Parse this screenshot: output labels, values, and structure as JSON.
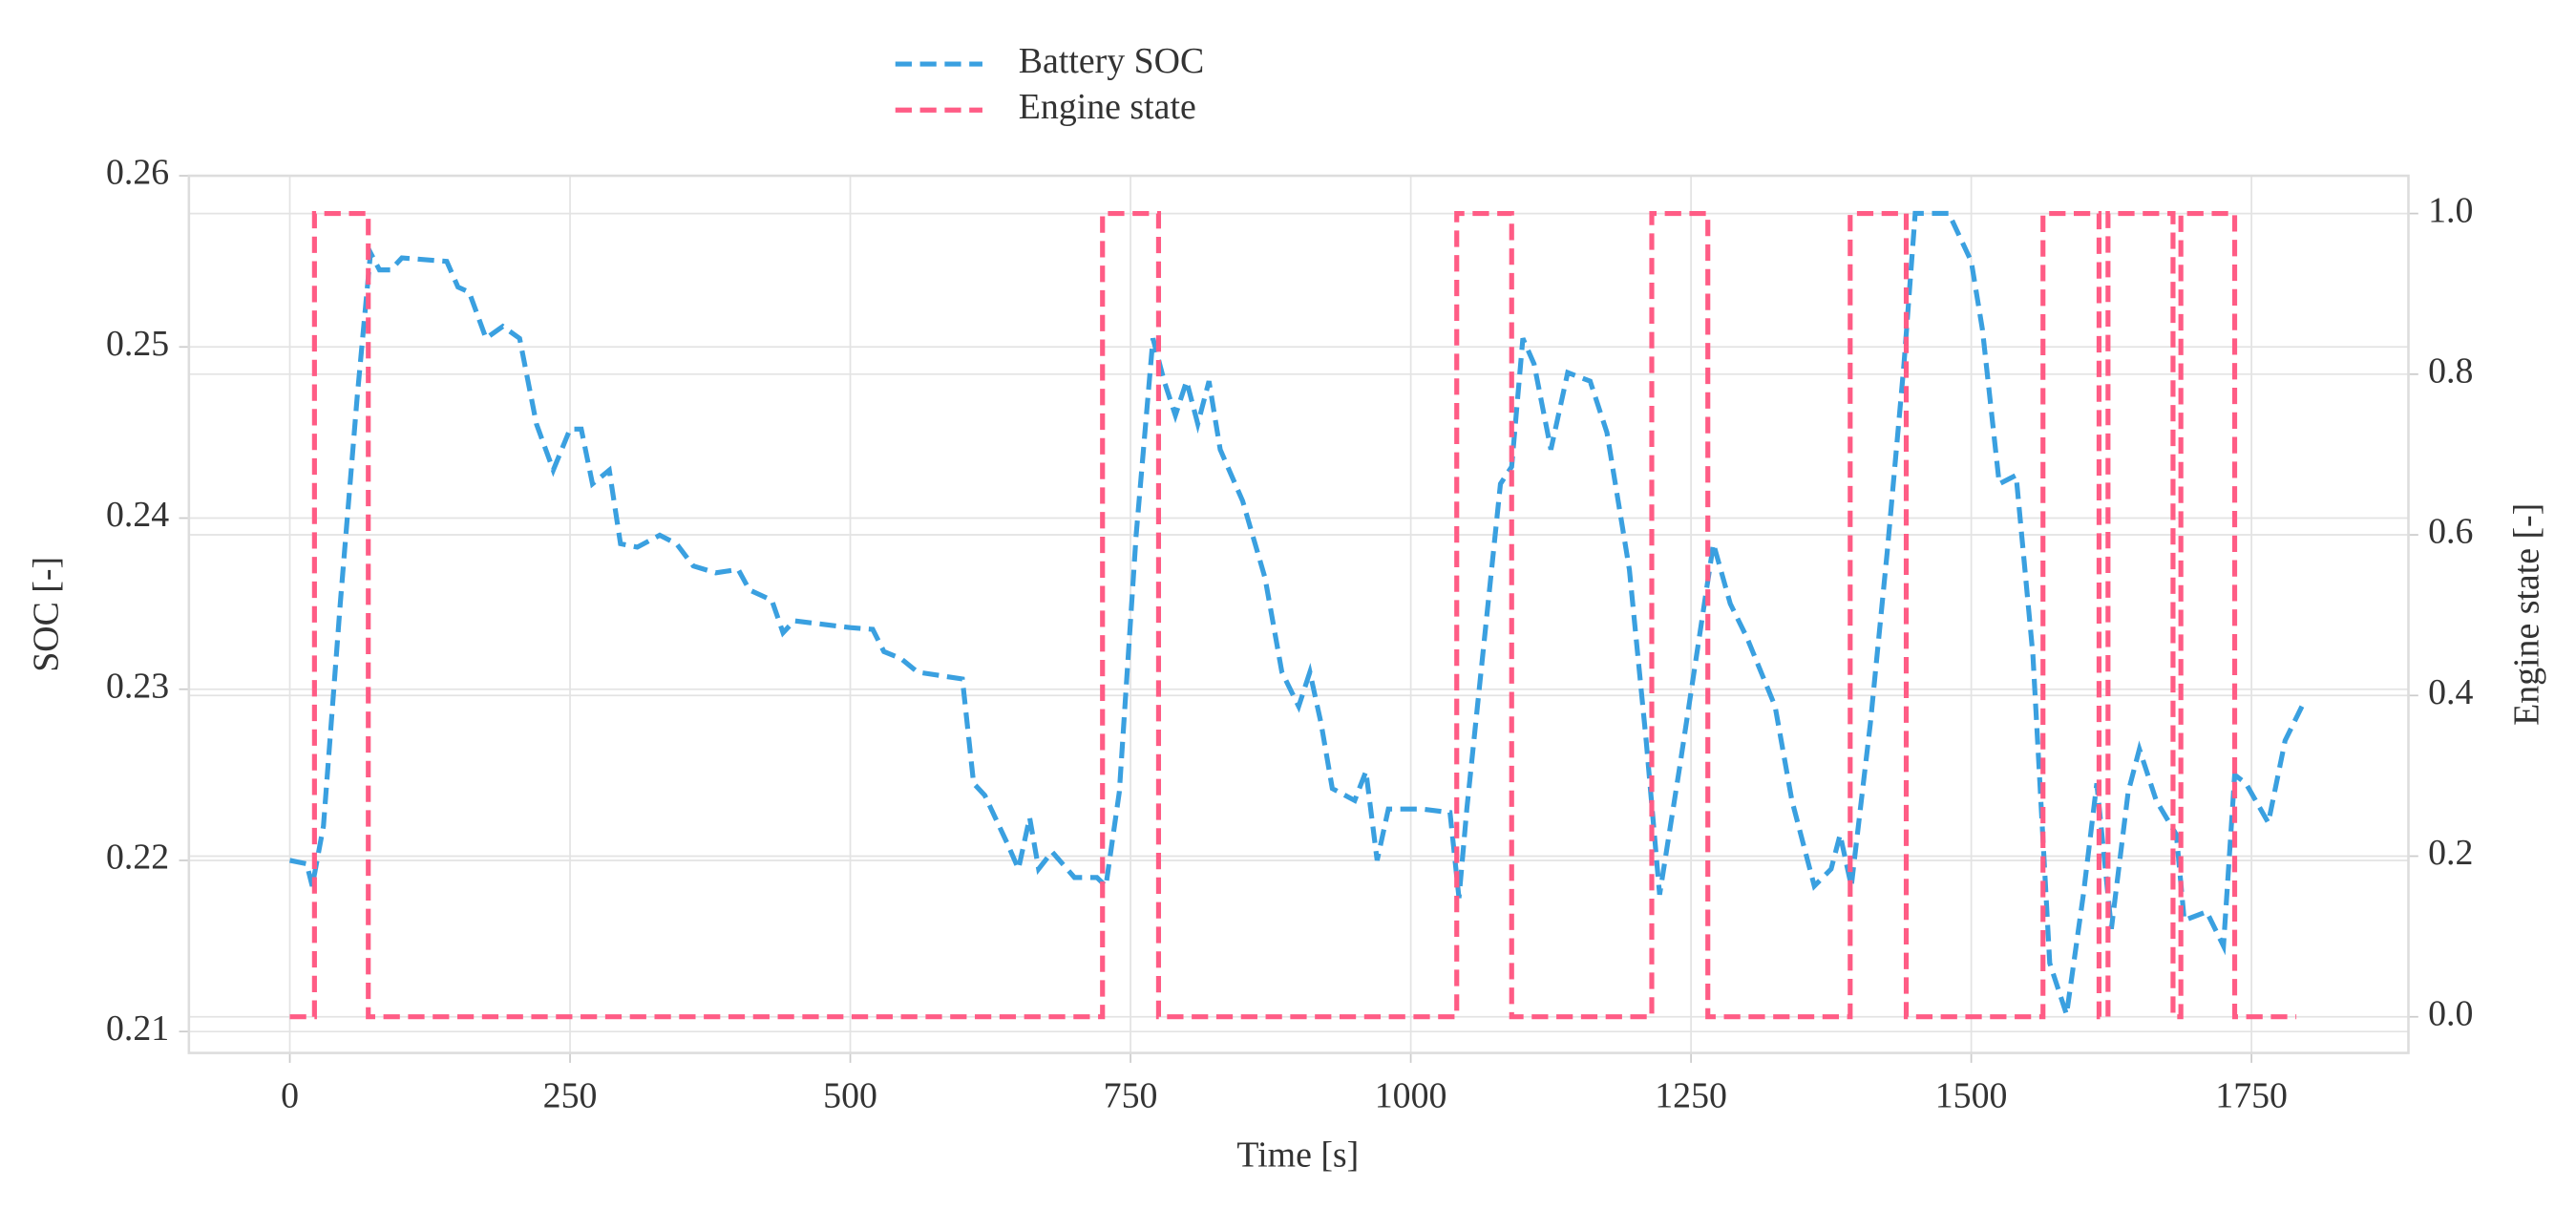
{
  "chart_data": {
    "type": "line",
    "xlabel": "Time [s]",
    "ylabel": "SOC [-]",
    "y2label": "Engine state [-]",
    "grid": true,
    "legend": "top",
    "xlim": [
      -90,
      1890
    ],
    "xticks": [
      0,
      250,
      500,
      750,
      1000,
      1250,
      1500,
      1750
    ],
    "ylim": [
      0.20875,
      0.26
    ],
    "yticks": [
      0.21,
      0.22,
      0.23,
      0.24,
      0.25,
      0.26
    ],
    "y2lim": [
      -0.045,
      1.047
    ],
    "y2ticks": [
      {
        "value": 0,
        "label": "0.0"
      },
      0.2,
      0.4,
      0.6,
      0.8,
      {
        "value": 1,
        "label": "1.0"
      }
    ],
    "series": [
      {
        "name": "Battery SOC",
        "color": "#3aa0e0",
        "axis": "y",
        "x": [
          0,
          15,
          20,
          30,
          45,
          60,
          72,
          80,
          90,
          100,
          140,
          150,
          160,
          175,
          190,
          205,
          220,
          235,
          250,
          260,
          270,
          285,
          295,
          310,
          330,
          345,
          360,
          380,
          400,
          410,
          430,
          440,
          450,
          500,
          520,
          530,
          545,
          560,
          600,
          610,
          620,
          640,
          650,
          660,
          668,
          680,
          700,
          720,
          728,
          740,
          755,
          770,
          780,
          790,
          800,
          810,
          820,
          830,
          850,
          870,
          885,
          900,
          910,
          920,
          930,
          950,
          960,
          970,
          980,
          1010,
          1035,
          1043,
          1050,
          1065,
          1080,
          1090,
          1100,
          1110,
          1125,
          1140,
          1160,
          1175,
          1195,
          1210,
          1222,
          1240,
          1255,
          1270,
          1285,
          1300,
          1325,
          1340,
          1360,
          1375,
          1383,
          1393,
          1410,
          1425,
          1440,
          1450,
          1480,
          1500,
          1510,
          1525,
          1540,
          1555,
          1570,
          1585,
          1600,
          1612,
          1625,
          1640,
          1650,
          1665,
          1683,
          1690,
          1710,
          1725,
          1735,
          1745,
          1765,
          1780,
          1795
        ],
        "values": [
          0.22,
          0.2198,
          0.2185,
          0.222,
          0.235,
          0.247,
          0.2555,
          0.2545,
          0.2545,
          0.2552,
          0.255,
          0.2535,
          0.2532,
          0.2505,
          0.2512,
          0.2505,
          0.2455,
          0.2428,
          0.2452,
          0.2452,
          0.242,
          0.2428,
          0.2385,
          0.2383,
          0.239,
          0.2385,
          0.2372,
          0.2368,
          0.237,
          0.2358,
          0.2352,
          0.2333,
          0.234,
          0.2336,
          0.2335,
          0.2322,
          0.2318,
          0.231,
          0.2306,
          0.2245,
          0.2238,
          0.221,
          0.2195,
          0.2225,
          0.2195,
          0.2205,
          0.219,
          0.219,
          0.2185,
          0.224,
          0.239,
          0.2505,
          0.248,
          0.246,
          0.248,
          0.2455,
          0.248,
          0.244,
          0.241,
          0.2365,
          0.231,
          0.229,
          0.231,
          0.228,
          0.2242,
          0.2235,
          0.2252,
          0.22,
          0.223,
          0.223,
          0.2228,
          0.2178,
          0.223,
          0.2325,
          0.242,
          0.243,
          0.2505,
          0.249,
          0.244,
          0.2485,
          0.248,
          0.245,
          0.237,
          0.227,
          0.218,
          0.2255,
          0.232,
          0.2385,
          0.235,
          0.233,
          0.229,
          0.2235,
          0.2185,
          0.2195,
          0.2215,
          0.2185,
          0.228,
          0.238,
          0.249,
          0.2578,
          0.2578,
          0.255,
          0.251,
          0.242,
          0.2425,
          0.232,
          0.214,
          0.211,
          0.218,
          0.2245,
          0.216,
          0.224,
          0.2265,
          0.2235,
          0.2215,
          0.2165,
          0.217,
          0.215,
          0.225,
          0.2245,
          0.2222,
          0.227,
          0.229
        ]
      },
      {
        "name": "Engine state",
        "color": "#ff5c85",
        "axis": "y2",
        "x": [
          0,
          22,
          22,
          70,
          70,
          725,
          725,
          775,
          775,
          1041,
          1041,
          1090,
          1090,
          1215,
          1215,
          1265,
          1265,
          1392,
          1392,
          1442,
          1442,
          1564,
          1564,
          1614,
          1614,
          1622,
          1622,
          1680,
          1680,
          1687,
          1687,
          1735,
          1735,
          1790
        ],
        "values": [
          0,
          0,
          1,
          1,
          0,
          0,
          1,
          1,
          0,
          0,
          1,
          1,
          0,
          0,
          1,
          1,
          0,
          0,
          1,
          1,
          0,
          0,
          1,
          1,
          0,
          0,
          1,
          1,
          0,
          0,
          1,
          1,
          0,
          0
        ]
      }
    ]
  }
}
